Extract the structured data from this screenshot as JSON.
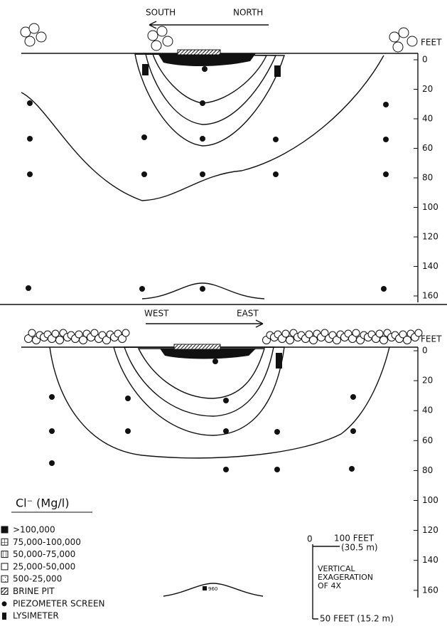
{
  "top_section": {
    "direction_left": "SOUTH",
    "direction_right": "NORTH",
    "depth_unit": "FEET",
    "depth_labels": [
      "0",
      "20",
      "40",
      "60",
      "80",
      "100",
      "120",
      "140",
      "160"
    ]
  },
  "bottom_section": {
    "direction_left": "WEST",
    "direction_right": "EAST",
    "depth_unit": "FEET",
    "depth_labels": [
      "0",
      "20",
      "40",
      "60",
      "80",
      "100",
      "120",
      "140",
      "160"
    ],
    "mound_label": "960"
  },
  "legend": {
    "title": "Cl⁻ (Mg/l)",
    "items": [
      ">100,000",
      "75,000-100,000",
      "50,000-75,000",
      "25,000-50,000",
      "500-25,000",
      "BRINE PIT",
      "PIEZOMETER SCREEN",
      "LYSIMETER"
    ]
  },
  "scale": {
    "zero": "0",
    "horizontal": "100 FEET",
    "horizontal_metric": "(30.5 m)",
    "note": [
      "VERTICAL",
      "EXAGERATION",
      "OF 4X"
    ],
    "vertical": "50 FEET (15.2 m)"
  }
}
